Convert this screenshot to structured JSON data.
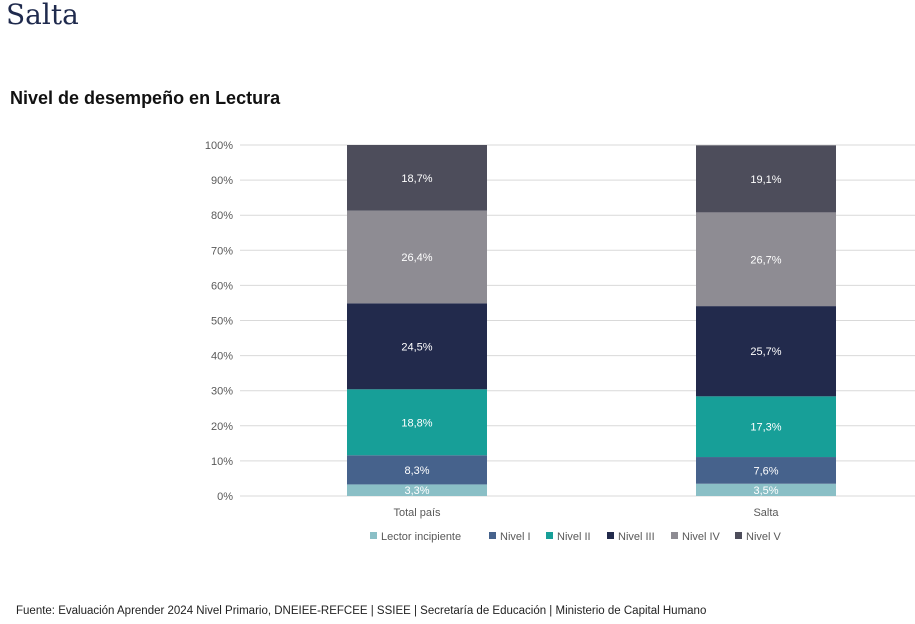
{
  "page": {
    "header": "Salta",
    "source_note": "Fuente: Evaluación Aprender 2024 Nivel Primario, DNEIEE-REFCEE | SSIEE | Secretaría de Educación | Ministerio de Capital Humano"
  },
  "chart_data": {
    "type": "bar",
    "stacked": true,
    "title": "Nivel de desempeño en Lectura",
    "xlabel": "",
    "ylabel": "",
    "ylim": [
      0,
      100
    ],
    "y_ticks": [
      "0%",
      "10%",
      "20%",
      "30%",
      "40%",
      "50%",
      "60%",
      "70%",
      "80%",
      "90%",
      "100%"
    ],
    "grid": true,
    "legend_position": "bottom",
    "categories": [
      "Total país",
      "Salta"
    ],
    "series": [
      {
        "name": "Lector incipiente",
        "color": "#8abfc6",
        "values": [
          3.3,
          3.5
        ],
        "labels": [
          "3,3%",
          "3,5%"
        ]
      },
      {
        "name": "Nivel I",
        "color": "#46628c",
        "values": [
          8.3,
          7.6
        ],
        "labels": [
          "8,3%",
          "7,6%"
        ]
      },
      {
        "name": "Nivel II",
        "color": "#179f98",
        "values": [
          18.8,
          17.3
        ],
        "labels": [
          "18,8%",
          "17,3%"
        ]
      },
      {
        "name": "Nivel III",
        "color": "#222a4c",
        "values": [
          24.5,
          25.7
        ],
        "labels": [
          "24,5%",
          "25,7%"
        ]
      },
      {
        "name": "Nivel IV",
        "color": "#8e8c93",
        "values": [
          26.4,
          26.7
        ],
        "labels": [
          "26,4%",
          "26,7%"
        ]
      },
      {
        "name": "Nivel V",
        "color": "#4d4d5b",
        "values": [
          18.7,
          19.1
        ],
        "labels": [
          "18,7%",
          "19,1%"
        ]
      }
    ]
  }
}
